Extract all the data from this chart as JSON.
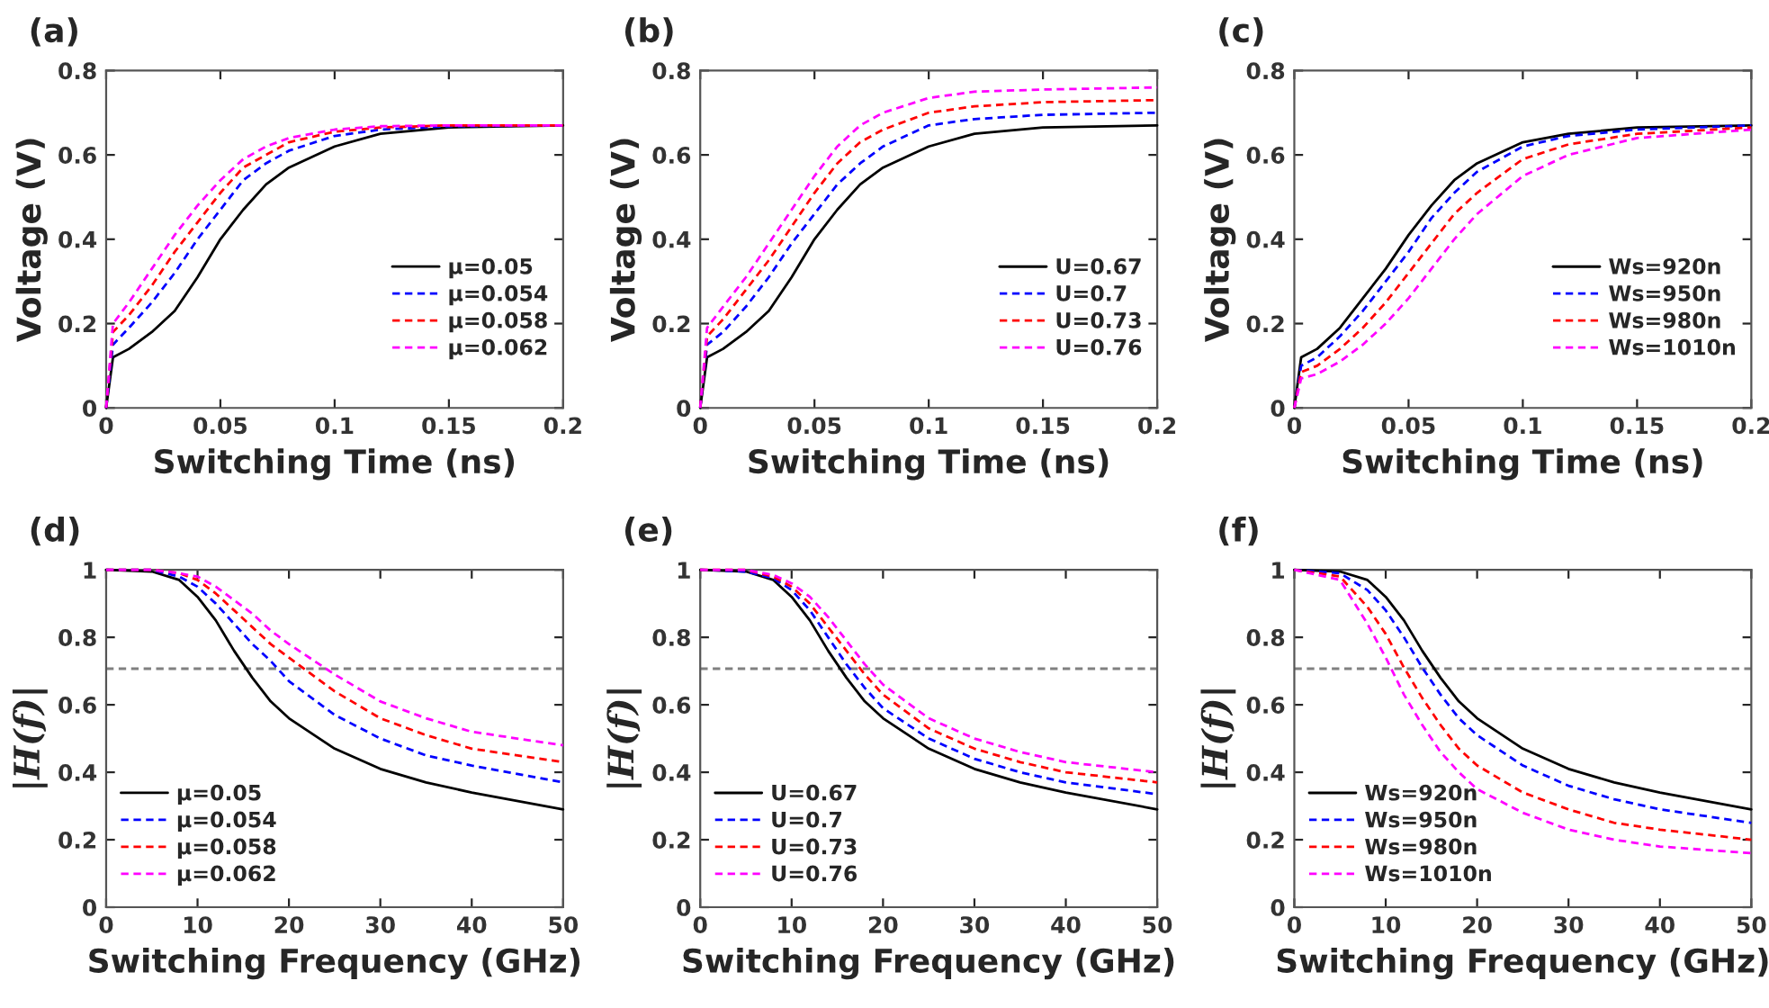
{
  "chart_data": [
    {
      "type": "line",
      "title": "(a)",
      "xlabel": "Switching Time (ns)",
      "ylabel": "Voltage (V)",
      "xlim": [
        0,
        0.2
      ],
      "xticks": [
        0,
        0.05,
        0.1,
        0.15,
        0.2
      ],
      "ylim": [
        0,
        0.8
      ],
      "yticks": [
        0,
        0.2,
        0.4,
        0.6,
        0.8
      ],
      "grid": false,
      "legend": "lower right",
      "series": [
        {
          "name": "μ=0.05",
          "color": "#000000",
          "line_style": "solid",
          "x": [
            0,
            0.003,
            0.01,
            0.02,
            0.03,
            0.04,
            0.05,
            0.06,
            0.07,
            0.08,
            0.1,
            0.12,
            0.15,
            0.2
          ],
          "values": [
            0,
            0.12,
            0.14,
            0.18,
            0.23,
            0.31,
            0.4,
            0.47,
            0.53,
            0.57,
            0.62,
            0.65,
            0.665,
            0.67
          ]
        },
        {
          "name": "μ=0.054",
          "color": "#0000ff",
          "line_style": "dashed",
          "x": [
            0,
            0.003,
            0.01,
            0.02,
            0.03,
            0.04,
            0.05,
            0.06,
            0.07,
            0.08,
            0.1,
            0.12,
            0.15,
            0.2
          ],
          "values": [
            0,
            0.15,
            0.19,
            0.25,
            0.32,
            0.4,
            0.47,
            0.54,
            0.58,
            0.61,
            0.645,
            0.66,
            0.668,
            0.67
          ]
        },
        {
          "name": "μ=0.058",
          "color": "#ff0000",
          "line_style": "dashed",
          "x": [
            0,
            0.003,
            0.01,
            0.02,
            0.03,
            0.04,
            0.05,
            0.06,
            0.07,
            0.08,
            0.1,
            0.12,
            0.15,
            0.2
          ],
          "values": [
            0,
            0.18,
            0.22,
            0.29,
            0.37,
            0.44,
            0.51,
            0.57,
            0.6,
            0.63,
            0.655,
            0.665,
            0.67,
            0.67
          ]
        },
        {
          "name": "μ=0.062",
          "color": "#ff00ff",
          "line_style": "dashed",
          "x": [
            0,
            0.003,
            0.01,
            0.02,
            0.03,
            0.04,
            0.05,
            0.06,
            0.07,
            0.08,
            0.1,
            0.12,
            0.15,
            0.2
          ],
          "values": [
            0,
            0.2,
            0.25,
            0.33,
            0.41,
            0.48,
            0.54,
            0.59,
            0.62,
            0.64,
            0.66,
            0.668,
            0.67,
            0.67
          ]
        }
      ]
    },
    {
      "type": "line",
      "title": "(b)",
      "xlabel": "Switching Time (ns)",
      "ylabel": "Voltage (V)",
      "xlim": [
        0,
        0.2
      ],
      "xticks": [
        0,
        0.05,
        0.1,
        0.15,
        0.2
      ],
      "ylim": [
        0,
        0.8
      ],
      "yticks": [
        0,
        0.2,
        0.4,
        0.6,
        0.8
      ],
      "grid": false,
      "legend": "lower right",
      "series": [
        {
          "name": "U=0.67",
          "color": "#000000",
          "line_style": "solid",
          "x": [
            0,
            0.003,
            0.01,
            0.02,
            0.03,
            0.04,
            0.05,
            0.06,
            0.07,
            0.08,
            0.1,
            0.12,
            0.15,
            0.2
          ],
          "values": [
            0,
            0.12,
            0.14,
            0.18,
            0.23,
            0.31,
            0.4,
            0.47,
            0.53,
            0.57,
            0.62,
            0.65,
            0.665,
            0.67
          ]
        },
        {
          "name": "U=0.7",
          "color": "#0000ff",
          "line_style": "dashed",
          "x": [
            0,
            0.003,
            0.01,
            0.02,
            0.03,
            0.04,
            0.05,
            0.06,
            0.07,
            0.08,
            0.1,
            0.12,
            0.15,
            0.2
          ],
          "values": [
            0,
            0.15,
            0.18,
            0.24,
            0.31,
            0.39,
            0.46,
            0.53,
            0.58,
            0.62,
            0.67,
            0.685,
            0.695,
            0.7
          ]
        },
        {
          "name": "U=0.73",
          "color": "#ff0000",
          "line_style": "dashed",
          "x": [
            0,
            0.003,
            0.01,
            0.02,
            0.03,
            0.04,
            0.05,
            0.06,
            0.07,
            0.08,
            0.1,
            0.12,
            0.15,
            0.2
          ],
          "values": [
            0,
            0.17,
            0.21,
            0.28,
            0.35,
            0.43,
            0.51,
            0.58,
            0.63,
            0.66,
            0.7,
            0.715,
            0.725,
            0.73
          ]
        },
        {
          "name": "U=0.76",
          "color": "#ff00ff",
          "line_style": "dashed",
          "x": [
            0,
            0.003,
            0.01,
            0.02,
            0.03,
            0.04,
            0.05,
            0.06,
            0.07,
            0.08,
            0.1,
            0.12,
            0.15,
            0.2
          ],
          "values": [
            0,
            0.19,
            0.24,
            0.31,
            0.39,
            0.47,
            0.55,
            0.62,
            0.67,
            0.7,
            0.735,
            0.75,
            0.755,
            0.76
          ]
        }
      ]
    },
    {
      "type": "line",
      "title": "(c)",
      "xlabel": "Switching Time (ns)",
      "ylabel": "Voltage (V)",
      "xlim": [
        0,
        0.2
      ],
      "xticks": [
        0,
        0.05,
        0.1,
        0.15,
        0.2
      ],
      "ylim": [
        0,
        0.8
      ],
      "yticks": [
        0,
        0.2,
        0.4,
        0.6,
        0.8
      ],
      "grid": false,
      "legend": "lower right",
      "series": [
        {
          "name": "Ws=920n",
          "color": "#000000",
          "line_style": "solid",
          "x": [
            0,
            0.003,
            0.01,
            0.02,
            0.03,
            0.04,
            0.05,
            0.06,
            0.07,
            0.08,
            0.1,
            0.12,
            0.15,
            0.2
          ],
          "values": [
            0,
            0.12,
            0.14,
            0.19,
            0.26,
            0.33,
            0.41,
            0.48,
            0.54,
            0.58,
            0.63,
            0.65,
            0.665,
            0.67
          ]
        },
        {
          "name": "Ws=950n",
          "color": "#0000ff",
          "line_style": "dashed",
          "x": [
            0,
            0.003,
            0.01,
            0.02,
            0.03,
            0.04,
            0.05,
            0.06,
            0.07,
            0.08,
            0.1,
            0.12,
            0.15,
            0.2
          ],
          "values": [
            0,
            0.1,
            0.12,
            0.17,
            0.23,
            0.3,
            0.37,
            0.45,
            0.51,
            0.56,
            0.62,
            0.645,
            0.66,
            0.67
          ]
        },
        {
          "name": "Ws=980n",
          "color": "#ff0000",
          "line_style": "dashed",
          "x": [
            0,
            0.003,
            0.01,
            0.02,
            0.03,
            0.04,
            0.05,
            0.06,
            0.07,
            0.08,
            0.1,
            0.12,
            0.15,
            0.2
          ],
          "values": [
            0,
            0.085,
            0.1,
            0.14,
            0.19,
            0.25,
            0.32,
            0.39,
            0.46,
            0.51,
            0.59,
            0.625,
            0.65,
            0.665
          ]
        },
        {
          "name": "Ws=1010n",
          "color": "#ff00ff",
          "line_style": "dashed",
          "x": [
            0,
            0.003,
            0.01,
            0.02,
            0.03,
            0.04,
            0.05,
            0.06,
            0.07,
            0.08,
            0.1,
            0.12,
            0.15,
            0.2
          ],
          "values": [
            0,
            0.07,
            0.08,
            0.11,
            0.15,
            0.2,
            0.26,
            0.33,
            0.4,
            0.46,
            0.55,
            0.6,
            0.64,
            0.66
          ]
        }
      ]
    },
    {
      "type": "line",
      "title": "(d)",
      "xlabel": "Switching Frequency (GHz)",
      "ylabel": "|H(f)|",
      "xlim": [
        0,
        50
      ],
      "xticks": [
        0,
        10,
        20,
        30,
        40,
        50
      ],
      "ylim": [
        0,
        1
      ],
      "yticks": [
        0,
        0.2,
        0.4,
        0.6,
        0.8,
        1
      ],
      "grid": false,
      "legend": "lower left",
      "ref_lines": [
        {
          "axis": "y",
          "value": 0.707,
          "color": "#808080",
          "line_style": "dashed"
        }
      ],
      "series": [
        {
          "name": "μ=0.05",
          "color": "#000000",
          "line_style": "solid",
          "x": [
            0,
            5,
            8,
            10,
            12,
            14,
            16,
            18,
            20,
            25,
            30,
            35,
            40,
            50
          ],
          "values": [
            1,
            0.995,
            0.97,
            0.92,
            0.85,
            0.76,
            0.68,
            0.61,
            0.56,
            0.47,
            0.41,
            0.37,
            0.34,
            0.29
          ]
        },
        {
          "name": "μ=0.054",
          "color": "#0000ff",
          "line_style": "dashed",
          "x": [
            0,
            5,
            8,
            10,
            12,
            14,
            16,
            18,
            20,
            25,
            30,
            35,
            40,
            50
          ],
          "values": [
            1,
            1,
            0.98,
            0.95,
            0.9,
            0.84,
            0.78,
            0.73,
            0.67,
            0.57,
            0.5,
            0.45,
            0.42,
            0.37
          ]
        },
        {
          "name": "μ=0.058",
          "color": "#ff0000",
          "line_style": "dashed",
          "x": [
            0,
            5,
            8,
            10,
            12,
            14,
            16,
            18,
            20,
            25,
            30,
            35,
            40,
            50
          ],
          "values": [
            1,
            1,
            0.99,
            0.97,
            0.93,
            0.88,
            0.83,
            0.78,
            0.74,
            0.64,
            0.56,
            0.51,
            0.47,
            0.43
          ]
        },
        {
          "name": "μ=0.062",
          "color": "#ff00ff",
          "line_style": "dashed",
          "x": [
            0,
            5,
            8,
            10,
            12,
            14,
            16,
            18,
            20,
            25,
            30,
            35,
            40,
            50
          ],
          "values": [
            1,
            1,
            0.99,
            0.98,
            0.95,
            0.91,
            0.87,
            0.82,
            0.78,
            0.69,
            0.61,
            0.56,
            0.52,
            0.48
          ]
        }
      ]
    },
    {
      "type": "line",
      "title": "(e)",
      "xlabel": "Switching Frequency (GHz)",
      "ylabel": "|H(f)|",
      "xlim": [
        0,
        50
      ],
      "xticks": [
        0,
        10,
        20,
        30,
        40,
        50
      ],
      "ylim": [
        0,
        1
      ],
      "yticks": [
        0,
        0.2,
        0.4,
        0.6,
        0.8,
        1
      ],
      "grid": false,
      "legend": "lower left",
      "ref_lines": [
        {
          "axis": "y",
          "value": 0.707,
          "color": "#808080",
          "line_style": "dashed"
        }
      ],
      "series": [
        {
          "name": "U=0.67",
          "color": "#000000",
          "line_style": "solid",
          "x": [
            0,
            5,
            8,
            10,
            12,
            14,
            16,
            18,
            20,
            25,
            30,
            35,
            40,
            50
          ],
          "values": [
            1,
            0.995,
            0.97,
            0.92,
            0.85,
            0.76,
            0.68,
            0.61,
            0.56,
            0.47,
            0.41,
            0.37,
            0.34,
            0.29
          ]
        },
        {
          "name": "U=0.7",
          "color": "#0000ff",
          "line_style": "dashed",
          "x": [
            0,
            5,
            8,
            10,
            12,
            14,
            16,
            18,
            20,
            25,
            30,
            35,
            40,
            50
          ],
          "values": [
            1,
            0.995,
            0.975,
            0.94,
            0.88,
            0.8,
            0.72,
            0.65,
            0.59,
            0.5,
            0.44,
            0.4,
            0.37,
            0.335
          ]
        },
        {
          "name": "U=0.73",
          "color": "#ff0000",
          "line_style": "dashed",
          "x": [
            0,
            5,
            8,
            10,
            12,
            14,
            16,
            18,
            20,
            25,
            30,
            35,
            40,
            50
          ],
          "values": [
            1,
            1,
            0.98,
            0.95,
            0.9,
            0.83,
            0.76,
            0.69,
            0.63,
            0.53,
            0.47,
            0.43,
            0.4,
            0.37
          ]
        },
        {
          "name": "U=0.76",
          "color": "#ff00ff",
          "line_style": "dashed",
          "x": [
            0,
            5,
            8,
            10,
            12,
            14,
            16,
            18,
            20,
            25,
            30,
            35,
            40,
            50
          ],
          "values": [
            1,
            1,
            0.985,
            0.96,
            0.92,
            0.86,
            0.79,
            0.72,
            0.66,
            0.56,
            0.5,
            0.46,
            0.43,
            0.4
          ]
        }
      ]
    },
    {
      "type": "line",
      "title": "(f)",
      "xlabel": "Switching Frequency (GHz)",
      "ylabel": "|H(f)|",
      "xlim": [
        0,
        50
      ],
      "xticks": [
        0,
        10,
        20,
        30,
        40,
        50
      ],
      "ylim": [
        0,
        1
      ],
      "yticks": [
        0,
        0.2,
        0.4,
        0.6,
        0.8,
        1
      ],
      "grid": false,
      "legend": "lower left",
      "ref_lines": [
        {
          "axis": "y",
          "value": 0.707,
          "color": "#808080",
          "line_style": "dashed"
        }
      ],
      "series": [
        {
          "name": "Ws=920n",
          "color": "#000000",
          "line_style": "solid",
          "x": [
            0,
            5,
            8,
            10,
            12,
            14,
            16,
            18,
            20,
            25,
            30,
            35,
            40,
            50
          ],
          "values": [
            1,
            0.995,
            0.97,
            0.92,
            0.85,
            0.76,
            0.68,
            0.61,
            0.56,
            0.47,
            0.41,
            0.37,
            0.34,
            0.29
          ]
        },
        {
          "name": "Ws=950n",
          "color": "#0000ff",
          "line_style": "dashed",
          "x": [
            0,
            5,
            8,
            10,
            12,
            14,
            16,
            18,
            20,
            25,
            30,
            35,
            40,
            50
          ],
          "values": [
            1,
            0.99,
            0.94,
            0.88,
            0.8,
            0.71,
            0.63,
            0.56,
            0.51,
            0.42,
            0.36,
            0.32,
            0.29,
            0.25
          ]
        },
        {
          "name": "Ws=980n",
          "color": "#ff0000",
          "line_style": "dashed",
          "x": [
            0,
            5,
            8,
            10,
            12,
            14,
            16,
            18,
            20,
            25,
            30,
            35,
            40,
            50
          ],
          "values": [
            1,
            0.98,
            0.89,
            0.81,
            0.71,
            0.62,
            0.54,
            0.47,
            0.42,
            0.34,
            0.29,
            0.25,
            0.23,
            0.2
          ]
        },
        {
          "name": "Ws=1010n",
          "color": "#ff00ff",
          "line_style": "dashed",
          "x": [
            0,
            5,
            8,
            10,
            12,
            14,
            16,
            18,
            20,
            25,
            30,
            35,
            40,
            50
          ],
          "values": [
            1,
            0.97,
            0.84,
            0.74,
            0.63,
            0.54,
            0.46,
            0.4,
            0.35,
            0.28,
            0.23,
            0.2,
            0.18,
            0.16
          ]
        }
      ]
    }
  ]
}
